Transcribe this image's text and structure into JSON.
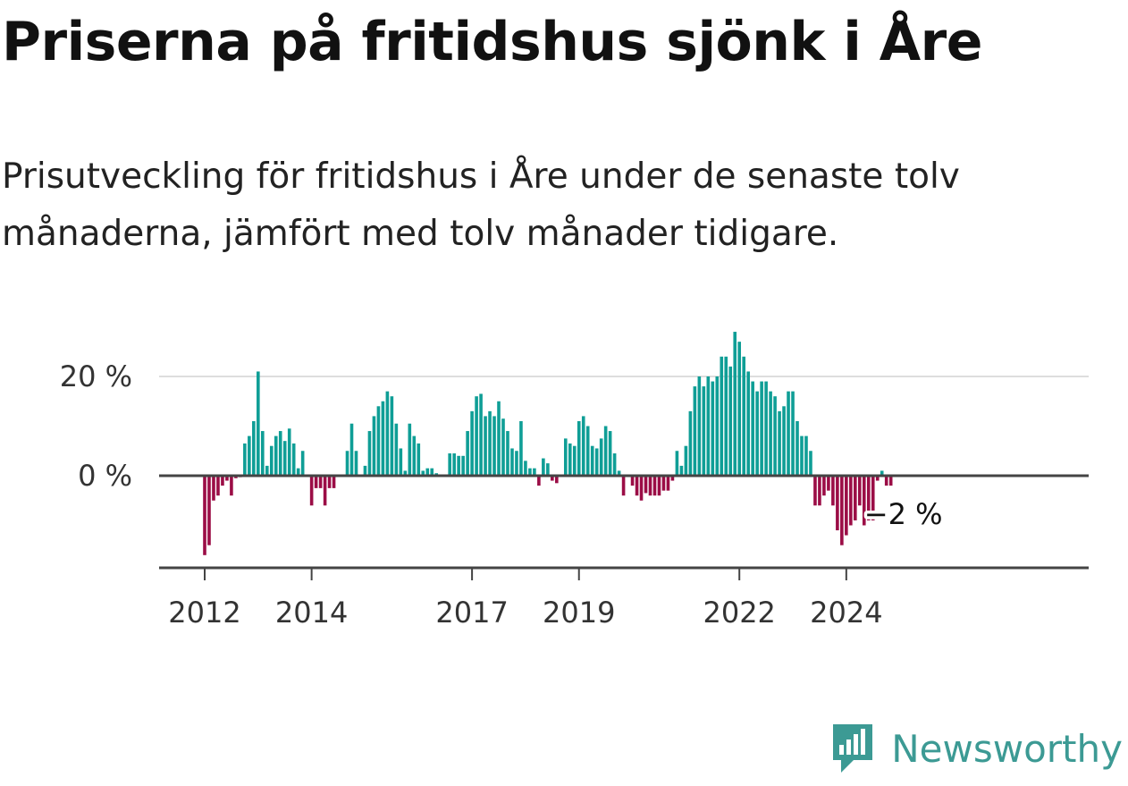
{
  "title": "Priserna på fritidshus sjönk i Åre",
  "subtitle": "Prisutveckling för fritidshus i Åre under de senaste tolv månaderna, jämfört med tolv månader tidigare.",
  "brand": {
    "name": "Newsworthy",
    "icon": "newsworthy-logo-icon",
    "color": "#3c9a94"
  },
  "chart_data": {
    "type": "bar",
    "x_start": "2012-01",
    "frequency": "monthly",
    "x_tick_labels": [
      "2012",
      "2014",
      "2017",
      "2019",
      "2022",
      "2024"
    ],
    "y_ticks": [
      0,
      20
    ],
    "y_tick_labels": [
      "0 %",
      "20 %"
    ],
    "ylim": [
      -19,
      29
    ],
    "grid": true,
    "end_label": "−2 %",
    "colors": {
      "positive": "#0f9e96",
      "negative": "#9b0d46"
    },
    "values": [
      -16,
      -14,
      -5,
      -4,
      -2,
      -1,
      -4,
      -0.5,
      -0.3,
      6.5,
      8,
      11,
      21,
      9,
      2,
      6,
      8,
      9,
      7,
      9.5,
      6.5,
      1.5,
      5,
      0,
      -6,
      -2.5,
      -2.5,
      -6,
      -2.5,
      -2.5,
      0,
      0,
      5,
      10.5,
      5,
      0,
      2,
      9,
      12,
      14,
      15,
      17,
      16,
      10.5,
      5.5,
      1,
      10.5,
      8,
      6.5,
      1,
      1.5,
      1.5,
      0.5,
      0,
      0,
      4.5,
      4.5,
      4,
      4,
      9,
      13,
      16,
      16.5,
      12,
      13,
      12,
      15,
      11.5,
      9,
      5.5,
      5,
      11,
      3,
      1.5,
      1.5,
      -2,
      3.5,
      2.5,
      -1,
      -1.5,
      0,
      7.5,
      6.5,
      6,
      11,
      12,
      10,
      6,
      5.5,
      7.5,
      10,
      9,
      4.5,
      1,
      -4,
      0,
      -2,
      -4,
      -5,
      -3.5,
      -4,
      -4,
      -4,
      -3,
      -3,
      -1,
      5,
      2,
      6,
      13,
      18,
      20,
      18,
      20,
      19,
      20,
      24,
      24,
      22,
      29,
      27,
      24,
      21,
      19,
      17,
      19,
      19,
      17,
      16,
      13,
      14,
      17,
      17,
      11,
      8,
      8,
      5,
      -6,
      -6,
      -4,
      -3,
      -6,
      -11,
      -14,
      -12,
      -10,
      -9,
      -6,
      -10,
      -9,
      -9,
      -1,
      1,
      -2,
      -2
    ]
  }
}
